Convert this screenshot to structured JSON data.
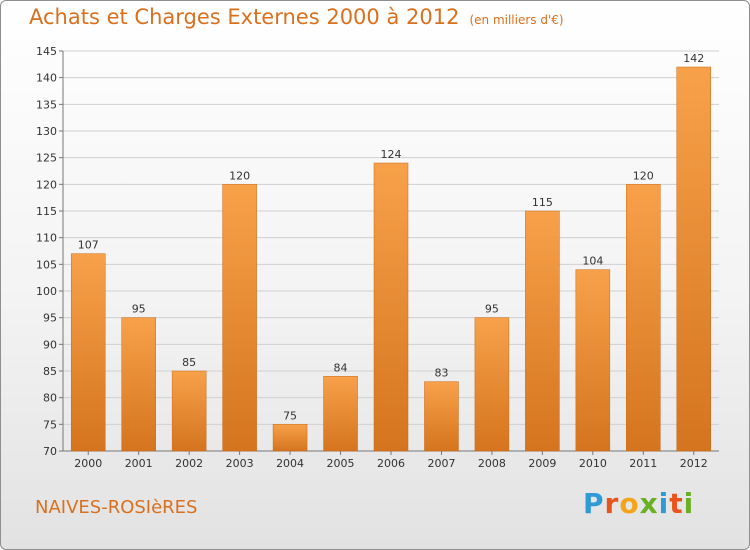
{
  "chart_data": {
    "type": "bar",
    "title": "Achats et Charges Externes 2000 à 2012",
    "unit_note": "(en milliers d'€)",
    "categories": [
      "2000",
      "2001",
      "2002",
      "2003",
      "2004",
      "2005",
      "2006",
      "2007",
      "2008",
      "2009",
      "2010",
      "2011",
      "2012"
    ],
    "values": [
      107,
      95,
      85,
      120,
      75,
      84,
      124,
      83,
      95,
      115,
      104,
      120,
      142
    ],
    "ylim": [
      70,
      145
    ],
    "yticks": [
      70,
      75,
      80,
      85,
      90,
      95,
      100,
      105,
      110,
      115,
      120,
      125,
      130,
      135,
      140,
      145
    ],
    "grid": true,
    "bar_color": "#f0923a",
    "bar_color_dark": "#d8741c"
  },
  "town_name": "NAIVES-ROSIèRES",
  "logo": {
    "letters": [
      "P",
      "r",
      "o",
      "x",
      "i",
      "t",
      "i"
    ],
    "colors": [
      "#2e9bd6",
      "#e8541b",
      "#f2a51a",
      "#6ab023",
      "#2e9bd6",
      "#e8541b",
      "#6ab023"
    ]
  }
}
